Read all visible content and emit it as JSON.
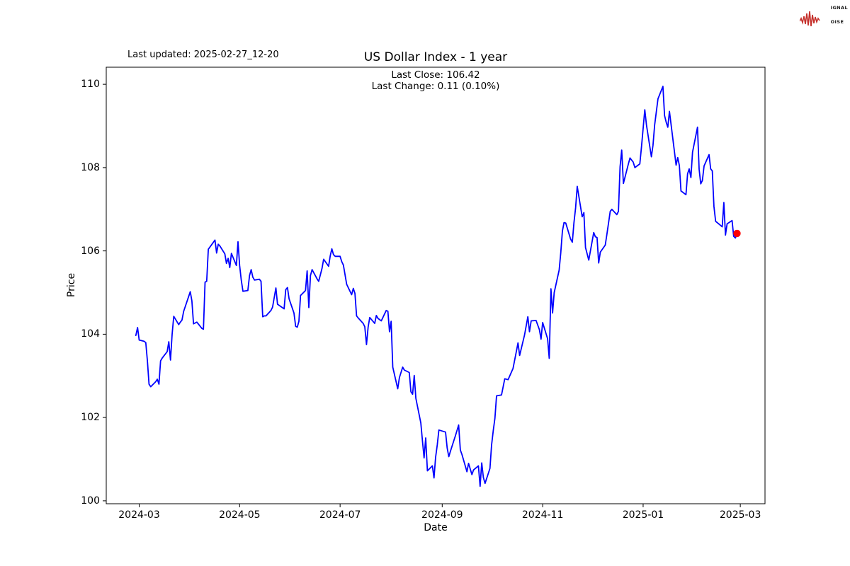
{
  "header": {
    "last_updated": "Last updated: 2025-02-27_12-20",
    "title": "US Dollar Index - 1 year",
    "annotation_line1": "Last Close: 106.42",
    "annotation_line2": "Last Change: 0.11 (0.10%)"
  },
  "logo": {
    "red": "#c5302b",
    "word1_initial": "S",
    "word1_rest": "IGNAL",
    "word2_initial": "2",
    "word2_rest": "",
    "word3_initial": "N",
    "word3_rest": "OISE"
  },
  "chart_data": {
    "type": "line",
    "title": "US Dollar Index - 1 year",
    "xlabel": "Date",
    "ylabel": "Price",
    "legend": "none",
    "grid": false,
    "line_color": "#0000ff",
    "marker_color": "#ff0000",
    "last_close": 106.42,
    "last_change": "0.11 (0.10%)",
    "ylim": [
      99.93,
      110.41
    ],
    "xlim": [
      "2024-02-10",
      "2025-03-16"
    ],
    "y_ticks": [
      100,
      102,
      104,
      106,
      108,
      110
    ],
    "x_ticks": [
      {
        "label": "2024-03",
        "date": "2024-03-01"
      },
      {
        "label": "2024-05",
        "date": "2024-05-01"
      },
      {
        "label": "2024-07",
        "date": "2024-07-01"
      },
      {
        "label": "2024-09",
        "date": "2024-09-01"
      },
      {
        "label": "2024-11",
        "date": "2024-11-01"
      },
      {
        "label": "2025-01",
        "date": "2025-01-01"
      },
      {
        "label": "2025-03",
        "date": "2025-03-01"
      }
    ],
    "series": [
      {
        "name": "US Dollar Index",
        "points": [
          [
            "2024-02-28",
            103.97
          ],
          [
            "2024-02-29",
            104.16
          ],
          [
            "2024-03-01",
            103.86
          ],
          [
            "2024-03-04",
            103.83
          ],
          [
            "2024-03-05",
            103.8
          ],
          [
            "2024-03-06",
            103.36
          ],
          [
            "2024-03-07",
            102.8
          ],
          [
            "2024-03-08",
            102.74
          ],
          [
            "2024-03-11",
            102.86
          ],
          [
            "2024-03-12",
            102.92
          ],
          [
            "2024-03-13",
            102.8
          ],
          [
            "2024-03-14",
            103.36
          ],
          [
            "2024-03-15",
            103.43
          ],
          [
            "2024-03-18",
            103.58
          ],
          [
            "2024-03-19",
            103.82
          ],
          [
            "2024-03-20",
            103.38
          ],
          [
            "2024-03-21",
            104.0
          ],
          [
            "2024-03-22",
            104.43
          ],
          [
            "2024-03-25",
            104.23
          ],
          [
            "2024-03-26",
            104.29
          ],
          [
            "2024-03-27",
            104.34
          ],
          [
            "2024-03-28",
            104.55
          ],
          [
            "2024-04-01",
            105.02
          ],
          [
            "2024-04-02",
            104.8
          ],
          [
            "2024-04-03",
            104.25
          ],
          [
            "2024-04-05",
            104.29
          ],
          [
            "2024-04-08",
            104.14
          ],
          [
            "2024-04-09",
            104.12
          ],
          [
            "2024-04-10",
            105.25
          ],
          [
            "2024-04-11",
            105.27
          ],
          [
            "2024-04-12",
            106.04
          ],
          [
            "2024-04-16",
            106.26
          ],
          [
            "2024-04-17",
            105.95
          ],
          [
            "2024-04-18",
            106.16
          ],
          [
            "2024-04-19",
            106.12
          ],
          [
            "2024-04-22",
            105.93
          ],
          [
            "2024-04-23",
            105.7
          ],
          [
            "2024-04-24",
            105.82
          ],
          [
            "2024-04-25",
            105.6
          ],
          [
            "2024-04-26",
            105.94
          ],
          [
            "2024-04-29",
            105.65
          ],
          [
            "2024-04-30",
            106.22
          ],
          [
            "2024-05-01",
            105.65
          ],
          [
            "2024-05-02",
            105.3
          ],
          [
            "2024-05-03",
            105.03
          ],
          [
            "2024-05-06",
            105.05
          ],
          [
            "2024-05-07",
            105.41
          ],
          [
            "2024-05-08",
            105.55
          ],
          [
            "2024-05-09",
            105.37
          ],
          [
            "2024-05-10",
            105.3
          ],
          [
            "2024-05-13",
            105.32
          ],
          [
            "2024-05-14",
            105.27
          ],
          [
            "2024-05-15",
            104.42
          ],
          [
            "2024-05-16",
            104.44
          ],
          [
            "2024-05-17",
            104.44
          ],
          [
            "2024-05-20",
            104.57
          ],
          [
            "2024-05-21",
            104.65
          ],
          [
            "2024-05-23",
            105.11
          ],
          [
            "2024-05-24",
            104.72
          ],
          [
            "2024-05-28",
            104.61
          ],
          [
            "2024-05-29",
            105.07
          ],
          [
            "2024-05-30",
            105.12
          ],
          [
            "2024-05-31",
            104.85
          ],
          [
            "2024-06-03",
            104.51
          ],
          [
            "2024-06-04",
            104.19
          ],
          [
            "2024-06-05",
            104.17
          ],
          [
            "2024-06-06",
            104.31
          ],
          [
            "2024-06-07",
            104.93
          ],
          [
            "2024-06-10",
            105.05
          ],
          [
            "2024-06-11",
            105.52
          ],
          [
            "2024-06-12",
            104.64
          ],
          [
            "2024-06-13",
            105.41
          ],
          [
            "2024-06-14",
            105.55
          ],
          [
            "2024-06-17",
            105.33
          ],
          [
            "2024-06-18",
            105.27
          ],
          [
            "2024-06-20",
            105.58
          ],
          [
            "2024-06-21",
            105.8
          ],
          [
            "2024-06-24",
            105.63
          ],
          [
            "2024-06-25",
            105.88
          ],
          [
            "2024-06-26",
            106.05
          ],
          [
            "2024-06-27",
            105.91
          ],
          [
            "2024-06-28",
            105.87
          ],
          [
            "2024-07-01",
            105.87
          ],
          [
            "2024-07-02",
            105.74
          ],
          [
            "2024-07-03",
            105.66
          ],
          [
            "2024-07-05",
            105.2
          ],
          [
            "2024-07-08",
            104.95
          ],
          [
            "2024-07-09",
            105.1
          ],
          [
            "2024-07-10",
            104.98
          ],
          [
            "2024-07-11",
            104.44
          ],
          [
            "2024-07-12",
            104.39
          ],
          [
            "2024-07-15",
            104.26
          ],
          [
            "2024-07-16",
            104.18
          ],
          [
            "2024-07-17",
            103.75
          ],
          [
            "2024-07-18",
            104.17
          ],
          [
            "2024-07-19",
            104.4
          ],
          [
            "2024-07-22",
            104.26
          ],
          [
            "2024-07-23",
            104.45
          ],
          [
            "2024-07-24",
            104.38
          ],
          [
            "2024-07-26",
            104.32
          ],
          [
            "2024-07-29",
            104.57
          ],
          [
            "2024-07-30",
            104.55
          ],
          [
            "2024-07-31",
            104.06
          ],
          [
            "2024-08-01",
            104.31
          ],
          [
            "2024-08-02",
            103.21
          ],
          [
            "2024-08-05",
            102.69
          ],
          [
            "2024-08-06",
            102.96
          ],
          [
            "2024-08-08",
            103.21
          ],
          [
            "2024-08-09",
            103.14
          ],
          [
            "2024-08-12",
            103.08
          ],
          [
            "2024-08-13",
            102.62
          ],
          [
            "2024-08-14",
            102.56
          ],
          [
            "2024-08-15",
            103.01
          ],
          [
            "2024-08-16",
            102.46
          ],
          [
            "2024-08-19",
            101.87
          ],
          [
            "2024-08-20",
            101.44
          ],
          [
            "2024-08-21",
            101.03
          ],
          [
            "2024-08-22",
            101.51
          ],
          [
            "2024-08-23",
            100.72
          ],
          [
            "2024-08-26",
            100.84
          ],
          [
            "2024-08-27",
            100.55
          ],
          [
            "2024-08-28",
            101.05
          ],
          [
            "2024-08-29",
            101.34
          ],
          [
            "2024-08-30",
            101.7
          ],
          [
            "2024-09-03",
            101.65
          ],
          [
            "2024-09-04",
            101.27
          ],
          [
            "2024-09-05",
            101.06
          ],
          [
            "2024-09-06",
            101.19
          ],
          [
            "2024-09-09",
            101.56
          ],
          [
            "2024-09-11",
            101.82
          ],
          [
            "2024-09-12",
            101.22
          ],
          [
            "2024-09-13",
            101.11
          ],
          [
            "2024-09-16",
            100.7
          ],
          [
            "2024-09-17",
            100.9
          ],
          [
            "2024-09-19",
            100.63
          ],
          [
            "2024-09-20",
            100.74
          ],
          [
            "2024-09-23",
            100.84
          ],
          [
            "2024-09-24",
            100.35
          ],
          [
            "2024-09-25",
            100.91
          ],
          [
            "2024-09-26",
            100.56
          ],
          [
            "2024-09-27",
            100.42
          ],
          [
            "2024-09-30",
            100.78
          ],
          [
            "2024-10-01",
            101.34
          ],
          [
            "2024-10-02",
            101.69
          ],
          [
            "2024-10-03",
            101.98
          ],
          [
            "2024-10-04",
            102.52
          ],
          [
            "2024-10-07",
            102.54
          ],
          [
            "2024-10-09",
            102.93
          ],
          [
            "2024-10-11",
            102.91
          ],
          [
            "2024-10-14",
            103.18
          ],
          [
            "2024-10-16",
            103.58
          ],
          [
            "2024-10-17",
            103.79
          ],
          [
            "2024-10-18",
            103.49
          ],
          [
            "2024-10-21",
            103.98
          ],
          [
            "2024-10-23",
            104.42
          ],
          [
            "2024-10-24",
            104.06
          ],
          [
            "2024-10-25",
            104.32
          ],
          [
            "2024-10-28",
            104.33
          ],
          [
            "2024-10-30",
            104.11
          ],
          [
            "2024-10-31",
            103.88
          ],
          [
            "2024-11-01",
            104.28
          ],
          [
            "2024-11-04",
            103.89
          ],
          [
            "2024-11-05",
            103.42
          ],
          [
            "2024-11-06",
            105.09
          ],
          [
            "2024-11-07",
            104.51
          ],
          [
            "2024-11-08",
            105.0
          ],
          [
            "2024-11-11",
            105.54
          ],
          [
            "2024-11-12",
            105.96
          ],
          [
            "2024-11-13",
            106.48
          ],
          [
            "2024-11-14",
            106.68
          ],
          [
            "2024-11-15",
            106.67
          ],
          [
            "2024-11-18",
            106.28
          ],
          [
            "2024-11-19",
            106.21
          ],
          [
            "2024-11-20",
            106.68
          ],
          [
            "2024-11-21",
            107.03
          ],
          [
            "2024-11-22",
            107.55
          ],
          [
            "2024-11-25",
            106.82
          ],
          [
            "2024-11-26",
            106.92
          ],
          [
            "2024-11-27",
            106.08
          ],
          [
            "2024-11-29",
            105.78
          ],
          [
            "2024-12-02",
            106.44
          ],
          [
            "2024-12-03",
            106.34
          ],
          [
            "2024-12-04",
            106.32
          ],
          [
            "2024-12-05",
            105.71
          ],
          [
            "2024-12-06",
            105.97
          ],
          [
            "2024-12-09",
            106.14
          ],
          [
            "2024-12-10",
            106.4
          ],
          [
            "2024-12-12",
            106.95
          ],
          [
            "2024-12-13",
            107.0
          ],
          [
            "2024-12-16",
            106.87
          ],
          [
            "2024-12-17",
            106.95
          ],
          [
            "2024-12-18",
            108.02
          ],
          [
            "2024-12-19",
            108.42
          ],
          [
            "2024-12-20",
            107.62
          ],
          [
            "2024-12-23",
            108.08
          ],
          [
            "2024-12-24",
            108.23
          ],
          [
            "2024-12-26",
            108.13
          ],
          [
            "2024-12-27",
            108.0
          ],
          [
            "2024-12-30",
            108.09
          ],
          [
            "2024-12-31",
            108.49
          ],
          [
            "2025-01-02",
            109.39
          ],
          [
            "2025-01-03",
            109.03
          ],
          [
            "2025-01-06",
            108.26
          ],
          [
            "2025-01-07",
            108.54
          ],
          [
            "2025-01-08",
            109.02
          ],
          [
            "2025-01-10",
            109.65
          ],
          [
            "2025-01-13",
            109.95
          ],
          [
            "2025-01-14",
            109.25
          ],
          [
            "2025-01-15",
            109.09
          ],
          [
            "2025-01-16",
            108.97
          ],
          [
            "2025-01-17",
            109.35
          ],
          [
            "2025-01-21",
            108.06
          ],
          [
            "2025-01-22",
            108.24
          ],
          [
            "2025-01-23",
            108.05
          ],
          [
            "2025-01-24",
            107.44
          ],
          [
            "2025-01-27",
            107.35
          ],
          [
            "2025-01-28",
            107.85
          ],
          [
            "2025-01-29",
            107.97
          ],
          [
            "2025-01-30",
            107.76
          ],
          [
            "2025-01-31",
            108.37
          ],
          [
            "2025-02-03",
            108.97
          ],
          [
            "2025-02-04",
            107.96
          ],
          [
            "2025-02-05",
            107.61
          ],
          [
            "2025-02-06",
            107.69
          ],
          [
            "2025-02-07",
            108.04
          ],
          [
            "2025-02-10",
            108.31
          ],
          [
            "2025-02-11",
            107.97
          ],
          [
            "2025-02-12",
            107.92
          ],
          [
            "2025-02-13",
            107.07
          ],
          [
            "2025-02-14",
            106.71
          ],
          [
            "2025-02-18",
            106.58
          ],
          [
            "2025-02-19",
            107.16
          ],
          [
            "2025-02-20",
            106.38
          ],
          [
            "2025-02-21",
            106.65
          ],
          [
            "2025-02-24",
            106.73
          ],
          [
            "2025-02-25",
            106.35
          ],
          [
            "2025-02-26",
            106.31
          ],
          [
            "2025-02-27",
            106.42
          ]
        ]
      }
    ]
  }
}
